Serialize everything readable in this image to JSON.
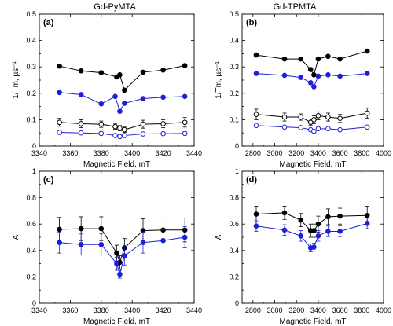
{
  "figure": {
    "title_left": "Gd-PyMTA",
    "title_right": "Gd-TPMTA"
  },
  "chart_data": [
    {
      "id": "a",
      "type": "line",
      "panel_label": "(a)",
      "xlabel": "Magnetic Field, mT",
      "ylabel": "1/Tm, µs⁻¹",
      "xlim": [
        3340,
        3440
      ],
      "ylim": [
        0,
        0.5
      ],
      "xticks": [
        3340,
        3360,
        3380,
        3400,
        3420,
        3440
      ],
      "yticks": [
        0,
        0.1,
        0.2,
        0.3,
        0.4,
        0.5
      ],
      "series": [
        {
          "color": "#000000",
          "filled": true,
          "points": [
            [
              3353,
              0.303
            ],
            [
              3367,
              0.285
            ],
            [
              3380,
              0.278
            ],
            [
              3390,
              0.262
            ],
            [
              3392,
              0.27
            ],
            [
              3395,
              0.212
            ],
            [
              3407,
              0.28
            ],
            [
              3420,
              0.288
            ],
            [
              3434,
              0.305
            ]
          ]
        },
        {
          "color": "#1f1fd6",
          "filled": true,
          "points": [
            [
              3353,
              0.203
            ],
            [
              3367,
              0.195
            ],
            [
              3380,
              0.16
            ],
            [
              3389,
              0.188
            ],
            [
              3392,
              0.132
            ],
            [
              3395,
              0.162
            ],
            [
              3407,
              0.18
            ],
            [
              3420,
              0.185
            ],
            [
              3434,
              0.188
            ]
          ]
        },
        {
          "color": "#000000",
          "filled": false,
          "errors": true,
          "points": [
            [
              3353,
              0.09,
              0.015
            ],
            [
              3367,
              0.085,
              0.015
            ],
            [
              3380,
              0.083,
              0.012
            ],
            [
              3389,
              0.074,
              0.01
            ],
            [
              3392,
              0.068,
              0.01
            ],
            [
              3395,
              0.062,
              0.01
            ],
            [
              3407,
              0.083,
              0.015
            ],
            [
              3420,
              0.085,
              0.015
            ],
            [
              3434,
              0.09,
              0.018
            ]
          ]
        },
        {
          "color": "#1f1fd6",
          "filled": false,
          "points": [
            [
              3353,
              0.052
            ],
            [
              3367,
              0.05
            ],
            [
              3380,
              0.048
            ],
            [
              3389,
              0.04
            ],
            [
              3392,
              0.036
            ],
            [
              3395,
              0.04
            ],
            [
              3407,
              0.046
            ],
            [
              3420,
              0.047
            ],
            [
              3434,
              0.048
            ]
          ]
        }
      ]
    },
    {
      "id": "b",
      "type": "line",
      "panel_label": "(b)",
      "xlabel": "Magnetic Field, mT",
      "ylabel": "1/Tm, µs⁻¹",
      "xlim": [
        2700,
        4000
      ],
      "ylim": [
        0,
        0.5
      ],
      "xticks": [
        2800,
        3000,
        3200,
        3400,
        3600,
        3800,
        4000
      ],
      "yticks": [
        0,
        0.1,
        0.2,
        0.3,
        0.4,
        0.5
      ],
      "series": [
        {
          "color": "#000000",
          "filled": true,
          "points": [
            [
              2830,
              0.345
            ],
            [
              3090,
              0.33
            ],
            [
              3240,
              0.33
            ],
            [
              3330,
              0.29
            ],
            [
              3360,
              0.27
            ],
            [
              3400,
              0.33
            ],
            [
              3490,
              0.34
            ],
            [
              3600,
              0.33
            ],
            [
              3850,
              0.36
            ]
          ]
        },
        {
          "color": "#1f1fd6",
          "filled": true,
          "points": [
            [
              2830,
              0.275
            ],
            [
              3090,
              0.268
            ],
            [
              3240,
              0.26
            ],
            [
              3330,
              0.24
            ],
            [
              3360,
              0.225
            ],
            [
              3400,
              0.265
            ],
            [
              3490,
              0.27
            ],
            [
              3600,
              0.265
            ],
            [
              3850,
              0.275
            ]
          ]
        },
        {
          "color": "#000000",
          "filled": false,
          "errors": true,
          "points": [
            [
              2830,
              0.12,
              0.02
            ],
            [
              3090,
              0.11,
              0.015
            ],
            [
              3240,
              0.11,
              0.012
            ],
            [
              3330,
              0.09,
              0.012
            ],
            [
              3360,
              0.1,
              0.015
            ],
            [
              3400,
              0.115,
              0.015
            ],
            [
              3490,
              0.11,
              0.015
            ],
            [
              3600,
              0.105,
              0.015
            ],
            [
              3850,
              0.125,
              0.02
            ]
          ]
        },
        {
          "color": "#1f1fd6",
          "filled": false,
          "points": [
            [
              2830,
              0.078
            ],
            [
              3090,
              0.072
            ],
            [
              3240,
              0.07
            ],
            [
              3330,
              0.062
            ],
            [
              3360,
              0.056
            ],
            [
              3400,
              0.066
            ],
            [
              3490,
              0.066
            ],
            [
              3600,
              0.062
            ],
            [
              3850,
              0.072
            ]
          ]
        }
      ]
    },
    {
      "id": "c",
      "type": "line",
      "panel_label": "(c)",
      "xlabel": "Magnetic Field, mT",
      "ylabel": "A",
      "xlim": [
        3340,
        3440
      ],
      "ylim": [
        0,
        1
      ],
      "xticks": [
        3340,
        3360,
        3380,
        3400,
        3420,
        3440
      ],
      "yticks": [
        0,
        0.2,
        0.4,
        0.6,
        0.8,
        1
      ],
      "series": [
        {
          "color": "#000000",
          "filled": true,
          "errors": true,
          "points": [
            [
              3353,
              0.56,
              0.09
            ],
            [
              3367,
              0.565,
              0.09
            ],
            [
              3380,
              0.565,
              0.09
            ],
            [
              3390,
              0.38,
              0.06
            ],
            [
              3392,
              0.31,
              0.05
            ],
            [
              3395,
              0.42,
              0.07
            ],
            [
              3407,
              0.55,
              0.09
            ],
            [
              3420,
              0.555,
              0.09
            ],
            [
              3434,
              0.555,
              0.09
            ]
          ]
        },
        {
          "color": "#1f1fd6",
          "filled": true,
          "errors": true,
          "points": [
            [
              3353,
              0.46,
              0.08
            ],
            [
              3367,
              0.445,
              0.08
            ],
            [
              3380,
              0.445,
              0.08
            ],
            [
              3390,
              0.3,
              0.05
            ],
            [
              3392,
              0.22,
              0.03
            ],
            [
              3395,
              0.36,
              0.07
            ],
            [
              3407,
              0.46,
              0.08
            ],
            [
              3420,
              0.475,
              0.08
            ],
            [
              3434,
              0.5,
              0.08
            ]
          ]
        }
      ]
    },
    {
      "id": "d",
      "type": "line",
      "panel_label": "(d)",
      "xlabel": "Magnetic Field, mT",
      "ylabel": "A",
      "xlim": [
        2700,
        4000
      ],
      "ylim": [
        0,
        1
      ],
      "xticks": [
        2800,
        3000,
        3200,
        3400,
        3600,
        3800,
        4000
      ],
      "yticks": [
        0,
        0.2,
        0.4,
        0.6,
        0.8,
        1
      ],
      "series": [
        {
          "color": "#000000",
          "filled": true,
          "errors": true,
          "points": [
            [
              2830,
              0.675,
              0.06
            ],
            [
              3090,
              0.685,
              0.05
            ],
            [
              3240,
              0.63,
              0.05
            ],
            [
              3330,
              0.55,
              0.05
            ],
            [
              3360,
              0.55,
              0.05
            ],
            [
              3400,
              0.6,
              0.06
            ],
            [
              3490,
              0.655,
              0.06
            ],
            [
              3600,
              0.66,
              0.06
            ],
            [
              3850,
              0.665,
              0.07
            ]
          ]
        },
        {
          "color": "#1f1fd6",
          "filled": true,
          "errors": true,
          "points": [
            [
              2830,
              0.585,
              0.04
            ],
            [
              3090,
              0.555,
              0.04
            ],
            [
              3240,
              0.51,
              0.04
            ],
            [
              3330,
              0.42,
              0.03
            ],
            [
              3360,
              0.425,
              0.03
            ],
            [
              3400,
              0.51,
              0.04
            ],
            [
              3490,
              0.545,
              0.04
            ],
            [
              3600,
              0.545,
              0.04
            ],
            [
              3850,
              0.605,
              0.04
            ]
          ]
        }
      ]
    }
  ]
}
